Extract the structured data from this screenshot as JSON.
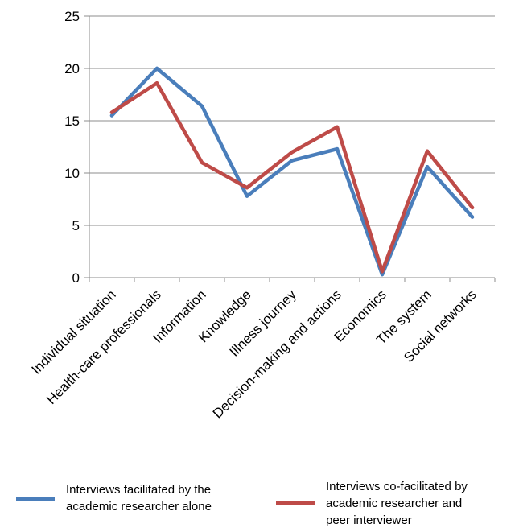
{
  "chart_data": {
    "type": "line",
    "categories": [
      "Individual situation",
      "Health-care professionals",
      "Information",
      "Knowledge",
      "Illness journey",
      "Decision-making and actions",
      "Economics",
      "The system",
      "Social networks"
    ],
    "series": [
      {
        "name": "Interviews facilitated by the academic researcher alone",
        "color": "#4a7ebb",
        "values": [
          15.5,
          20.0,
          16.4,
          7.8,
          11.2,
          12.3,
          0.3,
          10.6,
          5.8
        ]
      },
      {
        "name": "Interviews co-facilitated by academic researcher and peer interviewer",
        "color": "#be4b48",
        "values": [
          15.8,
          18.6,
          11.0,
          8.6,
          12.0,
          14.4,
          0.6,
          12.1,
          6.7
        ]
      }
    ],
    "yticks": [
      "0",
      "5",
      "10",
      "15",
      "20",
      "25"
    ],
    "ylim": [
      0,
      25
    ],
    "grid": true,
    "legend_position": "bottom",
    "title": "",
    "xlabel": "",
    "ylabel": ""
  },
  "legend": {
    "items": [
      {
        "label": "Interviews facilitated by the\nacademic researcher alone",
        "color": "#4a7ebb"
      },
      {
        "label": "Interviews co-facilitated by\nacademic researcher and\npeer interviewer",
        "color": "#be4b48"
      }
    ]
  }
}
